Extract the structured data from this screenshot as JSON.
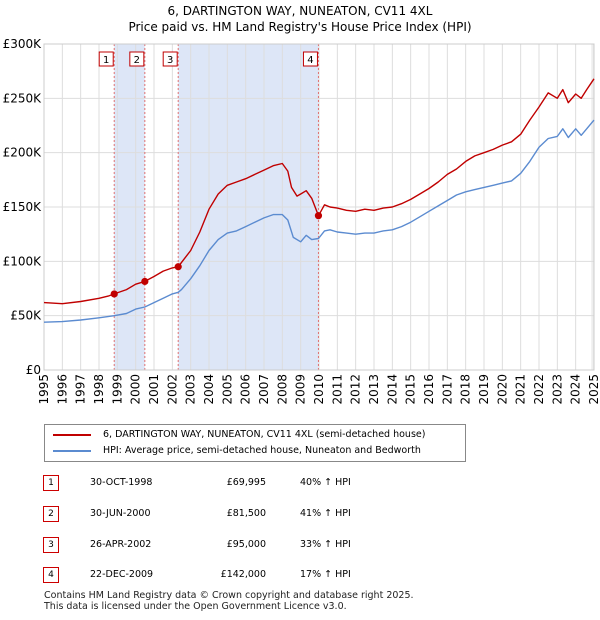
{
  "title_line1": "6, DARTINGTON WAY, NUNEATON, CV11 4XL",
  "title_line2": "Price paid vs. HM Land Registry's House Price Index (HPI)",
  "colors": {
    "property": "#c00000",
    "hpi": "#5b8bd0",
    "shade": "#dde6f7",
    "grid": "#dddddd",
    "vline": "#e07070"
  },
  "chart_data": {
    "type": "line",
    "xlim": [
      1995,
      2025
    ],
    "ylim": [
      0,
      300000
    ],
    "x_ticks": [
      "1995",
      "1996",
      "1997",
      "1998",
      "1999",
      "2000",
      "2001",
      "2002",
      "2003",
      "2004",
      "2005",
      "2006",
      "2007",
      "2008",
      "2009",
      "2010",
      "2011",
      "2012",
      "2013",
      "2014",
      "2015",
      "2016",
      "2017",
      "2018",
      "2019",
      "2020",
      "2021",
      "2022",
      "2023",
      "2024",
      "2025"
    ],
    "y_ticks": [
      {
        "value": 0,
        "label": "£0"
      },
      {
        "value": 50000,
        "label": "£50K"
      },
      {
        "value": 100000,
        "label": "£100K"
      },
      {
        "value": 150000,
        "label": "£150K"
      },
      {
        "value": 200000,
        "label": "£200K"
      },
      {
        "value": 250000,
        "label": "£250K"
      },
      {
        "value": 300000,
        "label": "£300K"
      }
    ],
    "series": [
      {
        "name": "6, DARTINGTON WAY, NUNEATON, CV11 4XL (semi-detached house)",
        "color": "#c00000",
        "x": [
          1995.0,
          1996.0,
          1997.0,
          1998.0,
          1998.5,
          1998.83,
          1999.5,
          2000.0,
          2000.5,
          2001.0,
          2001.5,
          2002.0,
          2002.32,
          2002.5,
          2003.0,
          2003.5,
          2004.0,
          2004.5,
          2005.0,
          2005.5,
          2006.0,
          2006.5,
          2007.0,
          2007.5,
          2008.0,
          2008.3,
          2008.5,
          2008.8,
          2009.0,
          2009.3,
          2009.6,
          2009.97,
          2010.3,
          2010.6,
          2011.0,
          2011.5,
          2012.0,
          2012.5,
          2013.0,
          2013.5,
          2014.0,
          2014.5,
          2015.0,
          2015.5,
          2016.0,
          2016.5,
          2017.0,
          2017.5,
          2018.0,
          2018.5,
          2019.0,
          2019.5,
          2020.0,
          2020.5,
          2021.0,
          2021.5,
          2022.0,
          2022.5,
          2023.0,
          2023.3,
          2023.6,
          2024.0,
          2024.3,
          2024.6,
          2025.0
        ],
        "values": [
          62000,
          61000,
          63000,
          66000,
          68000,
          69995,
          74000,
          79000,
          81500,
          86000,
          91000,
          94000,
          95000,
          99000,
          110000,
          127000,
          148000,
          162000,
          170000,
          173000,
          176000,
          180000,
          184000,
          188000,
          190000,
          183000,
          168000,
          160000,
          162000,
          165000,
          158000,
          142000,
          152000,
          150000,
          149000,
          147000,
          146000,
          148000,
          147000,
          149000,
          150000,
          153000,
          157000,
          162000,
          167000,
          173000,
          180000,
          185000,
          192000,
          197000,
          200000,
          203000,
          207000,
          210000,
          217000,
          230000,
          242000,
          255000,
          250000,
          258000,
          246000,
          254000,
          250000,
          258000,
          268000
        ]
      },
      {
        "name": "HPI: Average price, semi-detached house, Nuneaton and Bedworth",
        "color": "#5b8bd0",
        "x": [
          1995.0,
          1996.0,
          1997.0,
          1998.0,
          1998.83,
          1999.5,
          2000.0,
          2000.5,
          2001.0,
          2001.5,
          2002.0,
          2002.32,
          2002.5,
          2003.0,
          2003.5,
          2004.0,
          2004.5,
          2005.0,
          2005.5,
          2006.0,
          2006.5,
          2007.0,
          2007.5,
          2008.0,
          2008.3,
          2008.6,
          2009.0,
          2009.3,
          2009.6,
          2009.97,
          2010.3,
          2010.6,
          2011.0,
          2011.5,
          2012.0,
          2012.5,
          2013.0,
          2013.5,
          2014.0,
          2014.5,
          2015.0,
          2015.5,
          2016.0,
          2016.5,
          2017.0,
          2017.5,
          2018.0,
          2018.5,
          2019.0,
          2019.5,
          2020.0,
          2020.5,
          2021.0,
          2021.5,
          2022.0,
          2022.5,
          2023.0,
          2023.3,
          2023.6,
          2024.0,
          2024.3,
          2024.6,
          2025.0
        ],
        "values": [
          44000,
          44500,
          46000,
          48000,
          50000,
          52000,
          56000,
          58000,
          62000,
          66000,
          70000,
          71500,
          74000,
          84000,
          96000,
          110000,
          120000,
          126000,
          128000,
          132000,
          136000,
          140000,
          143000,
          143000,
          138000,
          122000,
          118000,
          124000,
          120000,
          121000,
          128000,
          129000,
          127000,
          126000,
          125000,
          126000,
          126000,
          128000,
          129000,
          132000,
          136000,
          141000,
          146000,
          151000,
          156000,
          161000,
          164000,
          166000,
          168000,
          170000,
          172000,
          174000,
          181000,
          192000,
          205000,
          213000,
          215000,
          222000,
          214000,
          222000,
          216000,
          222000,
          230000
        ]
      }
    ],
    "sales": [
      {
        "n": "1",
        "x": 1998.83,
        "price": 69995
      },
      {
        "n": "2",
        "x": 2000.5,
        "price": 81500
      },
      {
        "n": "3",
        "x": 2002.32,
        "price": 95000
      },
      {
        "n": "4",
        "x": 2009.97,
        "price": 142000
      }
    ]
  },
  "legend": {
    "property_label": "6, DARTINGTON WAY, NUNEATON, CV11 4XL (semi-detached house)",
    "hpi_label": "HPI: Average price, semi-detached house, Nuneaton and Bedworth"
  },
  "transactions": [
    {
      "n": "1",
      "date": "30-OCT-1998",
      "price": "£69,995",
      "change": "40% ↑ HPI"
    },
    {
      "n": "2",
      "date": "30-JUN-2000",
      "price": "£81,500",
      "change": "41% ↑ HPI"
    },
    {
      "n": "3",
      "date": "26-APR-2002",
      "price": "£95,000",
      "change": "33% ↑ HPI"
    },
    {
      "n": "4",
      "date": "22-DEC-2009",
      "price": "£142,000",
      "change": "17% ↑ HPI"
    }
  ],
  "footer": {
    "line1": "Contains HM Land Registry data © Crown copyright and database right 2025.",
    "line2": "This data is licensed under the Open Government Licence v3.0."
  }
}
